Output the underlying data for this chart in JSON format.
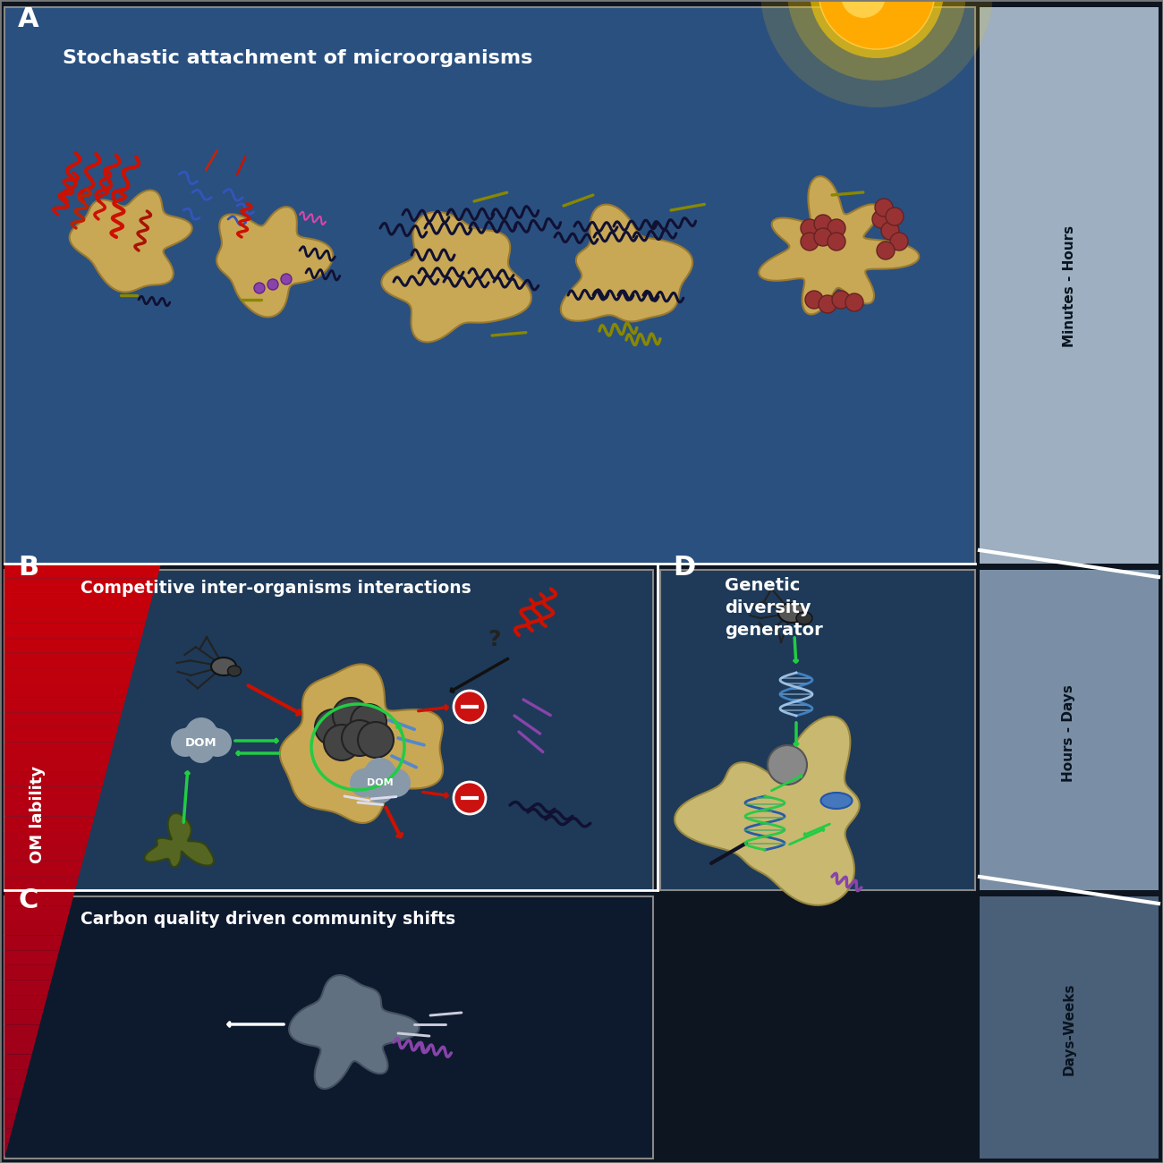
{
  "panel_A_label": "A",
  "panel_B_label": "B",
  "panel_C_label": "C",
  "panel_D_label": "D",
  "panel_A_title": "Stochastic attachment of microorganisms",
  "panel_B_title": "Competitive inter-organisms interactions",
  "panel_C_title": "Carbon quality driven community shifts",
  "panel_D_title": "Genetic\ndiversity\ngenerator",
  "om_lability_text": "OM lability",
  "time_labels": [
    "Minutes - Hours",
    "Hours - Days",
    "Days-Weeks"
  ],
  "bg_A": "#2a5080",
  "bg_B": "#1e3a58",
  "bg_C": "#0d1a2e",
  "bg_D": "#1e3a58",
  "bg_fig": "#0d1520",
  "timeline_top": "#9aa5b8",
  "timeline_mid": "#7a8898",
  "timeline_bot": "#4a5568",
  "particle_fill": "#c8a855",
  "particle_edge": "#9a7a30",
  "separator": "#cccccc",
  "panel_border": "#888888"
}
